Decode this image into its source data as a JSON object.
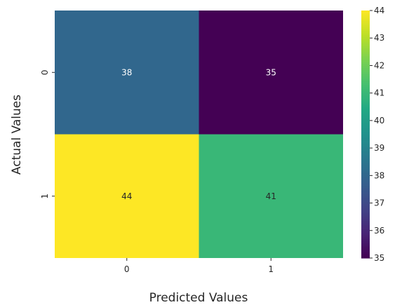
{
  "chart_data": {
    "type": "heatmap",
    "xlabel": "Predicted Values",
    "ylabel": "Actual Values",
    "x_categories": [
      "0",
      "1"
    ],
    "y_categories": [
      "0",
      "1"
    ],
    "values": [
      [
        38,
        35
      ],
      [
        44,
        41
      ]
    ],
    "annotations": [
      [
        "38",
        "35"
      ],
      [
        "44",
        "41"
      ]
    ],
    "colormap": "viridis",
    "colorbar": {
      "min": 35,
      "max": 44,
      "ticks": [
        "35",
        "36",
        "37",
        "38",
        "39",
        "40",
        "41",
        "42",
        "43",
        "44"
      ]
    }
  }
}
